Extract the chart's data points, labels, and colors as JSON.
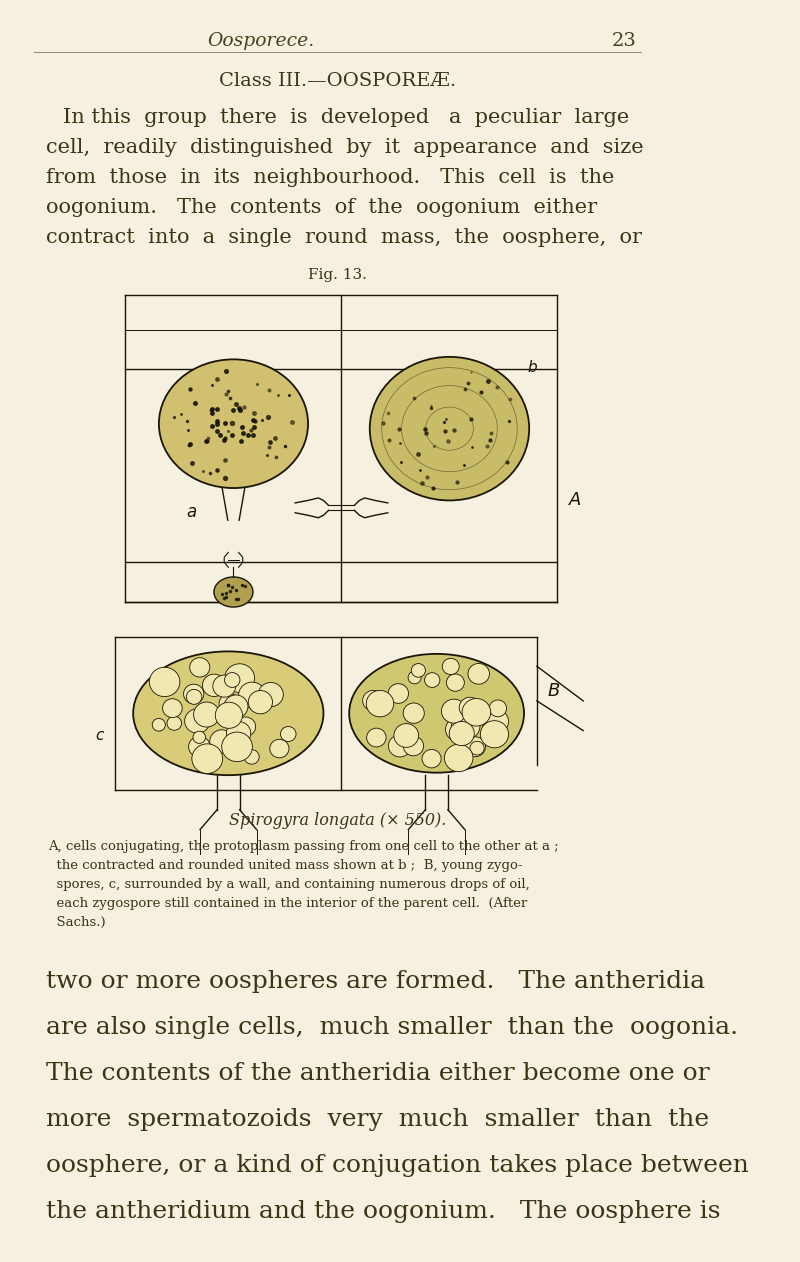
{
  "background_color": "#f5f0e0",
  "page_width": 8.0,
  "page_height": 12.62,
  "header_italic": "Oosporece.",
  "header_page_num": "23",
  "section_title": "Class III.—OOSPOREÆ.",
  "fig_label": "Fig. 13.",
  "fig_caption_full": "Spirogyra longata (× 550).",
  "caption_text_lines": [
    "A, cells conjugating, the protoplasm passing from one cell to the other at a ;",
    "  the contracted and rounded united mass shown at b ;  B, young zygo-",
    "  spores, c, surrounded by a wall, and containing numerous drops of oil,",
    "  each zygospore still contained in the interior of the parent cell.  (After",
    "  Sachs.)"
  ],
  "p1_lines": [
    "In this  group  there  is  developed   a  peculiar  large",
    "cell,  readily  distinguished  by  it  appearance  and  size",
    "from  those  in  its  neighbourhood.   This  cell  is  the",
    "oogonium.   The  contents  of  the  oogonium  either",
    "contract  into  a  single  round  mass,  the  oosphere,  or"
  ],
  "p2_lines": [
    "two or more oospheres are formed.   The antheridia",
    "are also single cells,  much smaller  than the  oogonia.",
    "The contents of the antheridia either become one or",
    "more  spermatozoids  very  much  smaller  than  the",
    "oosphere, or a kind of conjugation takes place between",
    "the antheridium and the oogonium.   The oosphere is"
  ],
  "text_color": "#3a3515",
  "draw_color": "#1a1505",
  "header_color": "#4a4020"
}
